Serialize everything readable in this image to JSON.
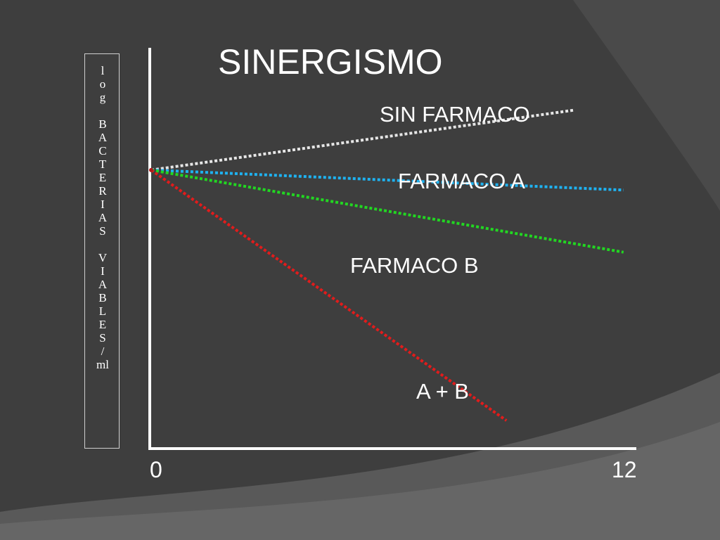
{
  "slide": {
    "title": "SINERGISMO",
    "ylabel": "l\no\ng\n\nB\nA\nC\nT\nE\nR\nI\nA\nS\n\nV\nI\nA\nB\nL\nE\nS\n/\nml",
    "colors": {
      "background": "#3e3e3e",
      "background_light": "#4f4f4f",
      "axis": "#ffffff",
      "text": "#ffffff"
    }
  },
  "chart_data": {
    "type": "line",
    "title": "SINERGISMO",
    "xlabel": "",
    "ylabel": "log BACTERIAS VIABLES / ml",
    "xlim": [
      0,
      12
    ],
    "ylim": [
      0,
      10
    ],
    "x_tick_labels": [
      "0",
      "12"
    ],
    "grid": false,
    "series": [
      {
        "name": "SIN FARMACO",
        "color": "#e6e6e6",
        "x": [
          0,
          10.5
        ],
        "y": [
          6.95,
          8.45
        ]
      },
      {
        "name": "FARMACO A",
        "color": "#1fb2f0",
        "x": [
          0,
          11.7
        ],
        "y": [
          6.95,
          6.45
        ]
      },
      {
        "name": "FARMACO B",
        "color": "#22d622",
        "x": [
          0,
          11.7
        ],
        "y": [
          6.95,
          4.9
        ]
      },
      {
        "name": "A + B",
        "color": "#e11c1c",
        "x": [
          0,
          8.8
        ],
        "y": [
          6.95,
          0.7
        ]
      }
    ]
  }
}
